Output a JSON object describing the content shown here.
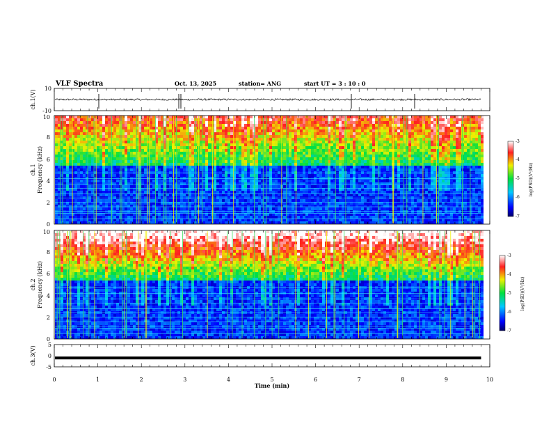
{
  "header": {
    "title": "VLF Spectra",
    "date": "Oct. 13, 2025",
    "station": "station= ANG",
    "start_ut": "start  UT =   3  : 10 : 0"
  },
  "chart_data": [
    {
      "type": "line",
      "name": "ch1-waveform",
      "ylabel": "ch.1(V)",
      "ylim": [
        -10,
        10
      ],
      "yticks": [
        "10",
        "-10"
      ],
      "baseline": 0
    },
    {
      "type": "heatmap",
      "name": "ch1-spectrogram",
      "ylabel_channel": "ch.1",
      "ylabel": "Frequency (kHz)",
      "ylim": [
        0,
        10
      ],
      "yticks": [
        "0",
        "2",
        "4",
        "6",
        "8",
        "10"
      ],
      "colorbar": {
        "label": "log(PSD)(V²/Hz)",
        "range": [
          -7,
          -3
        ],
        "ticks": [
          "-3",
          "-4",
          "-5",
          "-6",
          "-7"
        ]
      }
    },
    {
      "type": "heatmap",
      "name": "ch2-spectrogram",
      "ylabel_channel": "ch.2",
      "ylabel": "Frequency (kHz)",
      "ylim": [
        0,
        10
      ],
      "yticks": [
        "0",
        "2",
        "4",
        "6",
        "8",
        "10"
      ],
      "colorbar": {
        "label": "log(PSD)(V²/Hz)",
        "range": [
          -7,
          -3
        ],
        "ticks": [
          "-3",
          "-4",
          "-5",
          "-6",
          "-7"
        ]
      }
    },
    {
      "type": "line",
      "name": "ch3-waveform",
      "ylabel": "ch.3(V)",
      "ylim": [
        -5,
        5
      ],
      "yticks": [
        "5",
        "0",
        "-5"
      ],
      "baseline": -1
    }
  ],
  "x_axis": {
    "label": "Time (min)",
    "range": [
      0,
      10
    ],
    "ticks": [
      "0",
      "1",
      "2",
      "3",
      "4",
      "5",
      "6",
      "7",
      "8",
      "9",
      "10"
    ],
    "data_end": 9.8
  }
}
